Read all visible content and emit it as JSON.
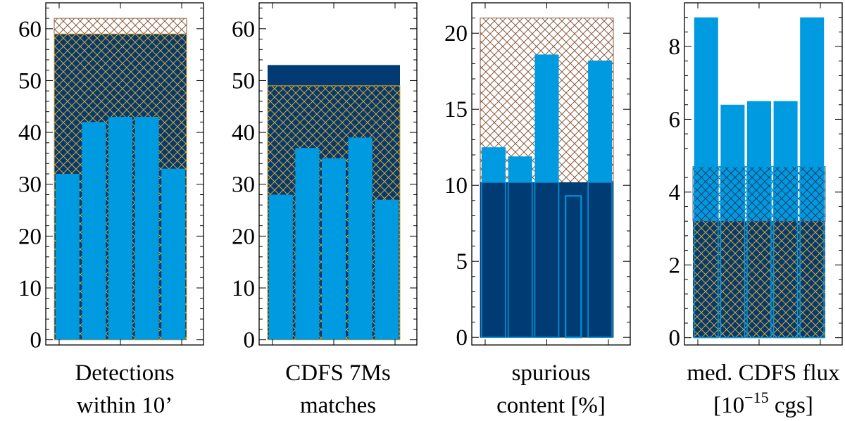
{
  "chart_data": [
    {
      "type": "bar",
      "xlabel_lines": [
        "Detections",
        "within 10’"
      ],
      "ylim": [
        -1,
        65
      ],
      "yticks": [
        0,
        10,
        20,
        30,
        40,
        50,
        60
      ],
      "bars": [
        32,
        42,
        43,
        43,
        33
      ],
      "bg_top": 62,
      "dark_level": 59,
      "overlay_top": 59
    },
    {
      "type": "bar",
      "xlabel_lines": [
        "CDFS 7Ms",
        "matches"
      ],
      "ylim": [
        -1,
        65
      ],
      "yticks": [
        0,
        10,
        20,
        30,
        40,
        50,
        60
      ],
      "bars": [
        28,
        37,
        35,
        39,
        27
      ],
      "bg_top": 49,
      "dark_level": 53,
      "overlay_top": 49
    },
    {
      "type": "bar",
      "xlabel_lines": [
        "spurious",
        "content [%]"
      ],
      "ylim": [
        -0.5,
        22
      ],
      "yticks": [
        0,
        5,
        10,
        15,
        20
      ],
      "bars": [
        12.5,
        11.9,
        18.6,
        9.3,
        18.2
      ],
      "bg_top": 21,
      "dark_level": 10.2,
      "overlay_top": 10.2
    },
    {
      "type": "bar",
      "xlabel_lines": [
        "med. CDFS flux",
        "[10",
        "−15",
        " cgs]"
      ],
      "ylim": [
        -0.2,
        9.2
      ],
      "yticks": [
        0,
        2,
        4,
        6,
        8
      ],
      "bars": [
        8.8,
        6.4,
        6.5,
        6.5,
        8.8
      ],
      "bg_top": 4.7,
      "dark_level": 3.2,
      "overlay_top": 4.7
    }
  ],
  "colors": {
    "dark": "#003b73",
    "bright": "#009ae0",
    "hatch_orange": "#e8a020",
    "hatch_brown": "#8b5a3c",
    "hatch_navy": "#1a3e6a",
    "axis": "#000000"
  }
}
